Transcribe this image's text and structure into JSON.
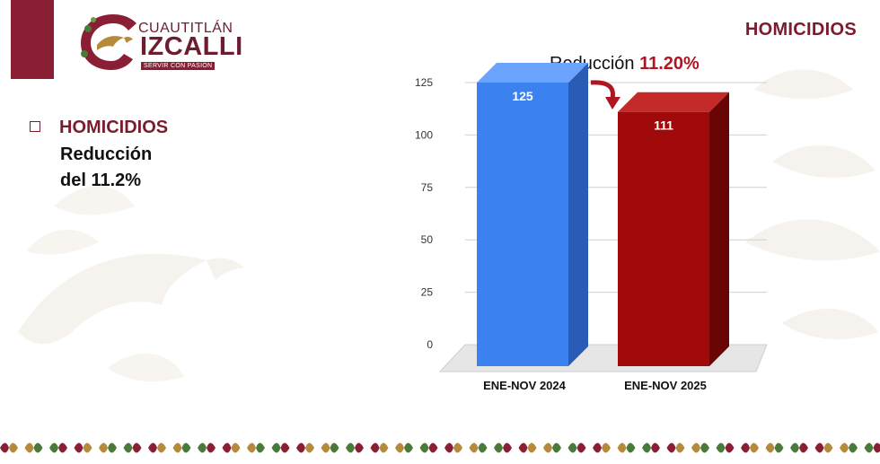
{
  "header": {
    "logo": {
      "city_top": "CUAUTITLÁN",
      "city_main": "IZCALLI",
      "tagline": "SERVIR CON PASIÓN"
    },
    "title": "HOMICIDIOS"
  },
  "summary": {
    "bullet_title": "HOMICIDIOS",
    "line1": "Reducción",
    "line2": "del 11.2%"
  },
  "reduction_note": {
    "label": "Reducción",
    "value": "11.20%"
  },
  "colors": {
    "brand_maroon": "#7a1b2e",
    "bar_2024": "#3b82f0",
    "bar_2025": "#a00a0a",
    "reduction_red": "#b01622"
  },
  "chart_data": {
    "type": "bar",
    "categories": [
      "ENE-NOV 2024",
      "ENE-NOV 2025"
    ],
    "values": [
      125,
      111
    ],
    "data_labels": [
      "125",
      "111"
    ],
    "ylim": [
      0,
      125
    ],
    "yticks": [
      0,
      25,
      50,
      75,
      100,
      125
    ],
    "grid": true,
    "style": "3d"
  }
}
